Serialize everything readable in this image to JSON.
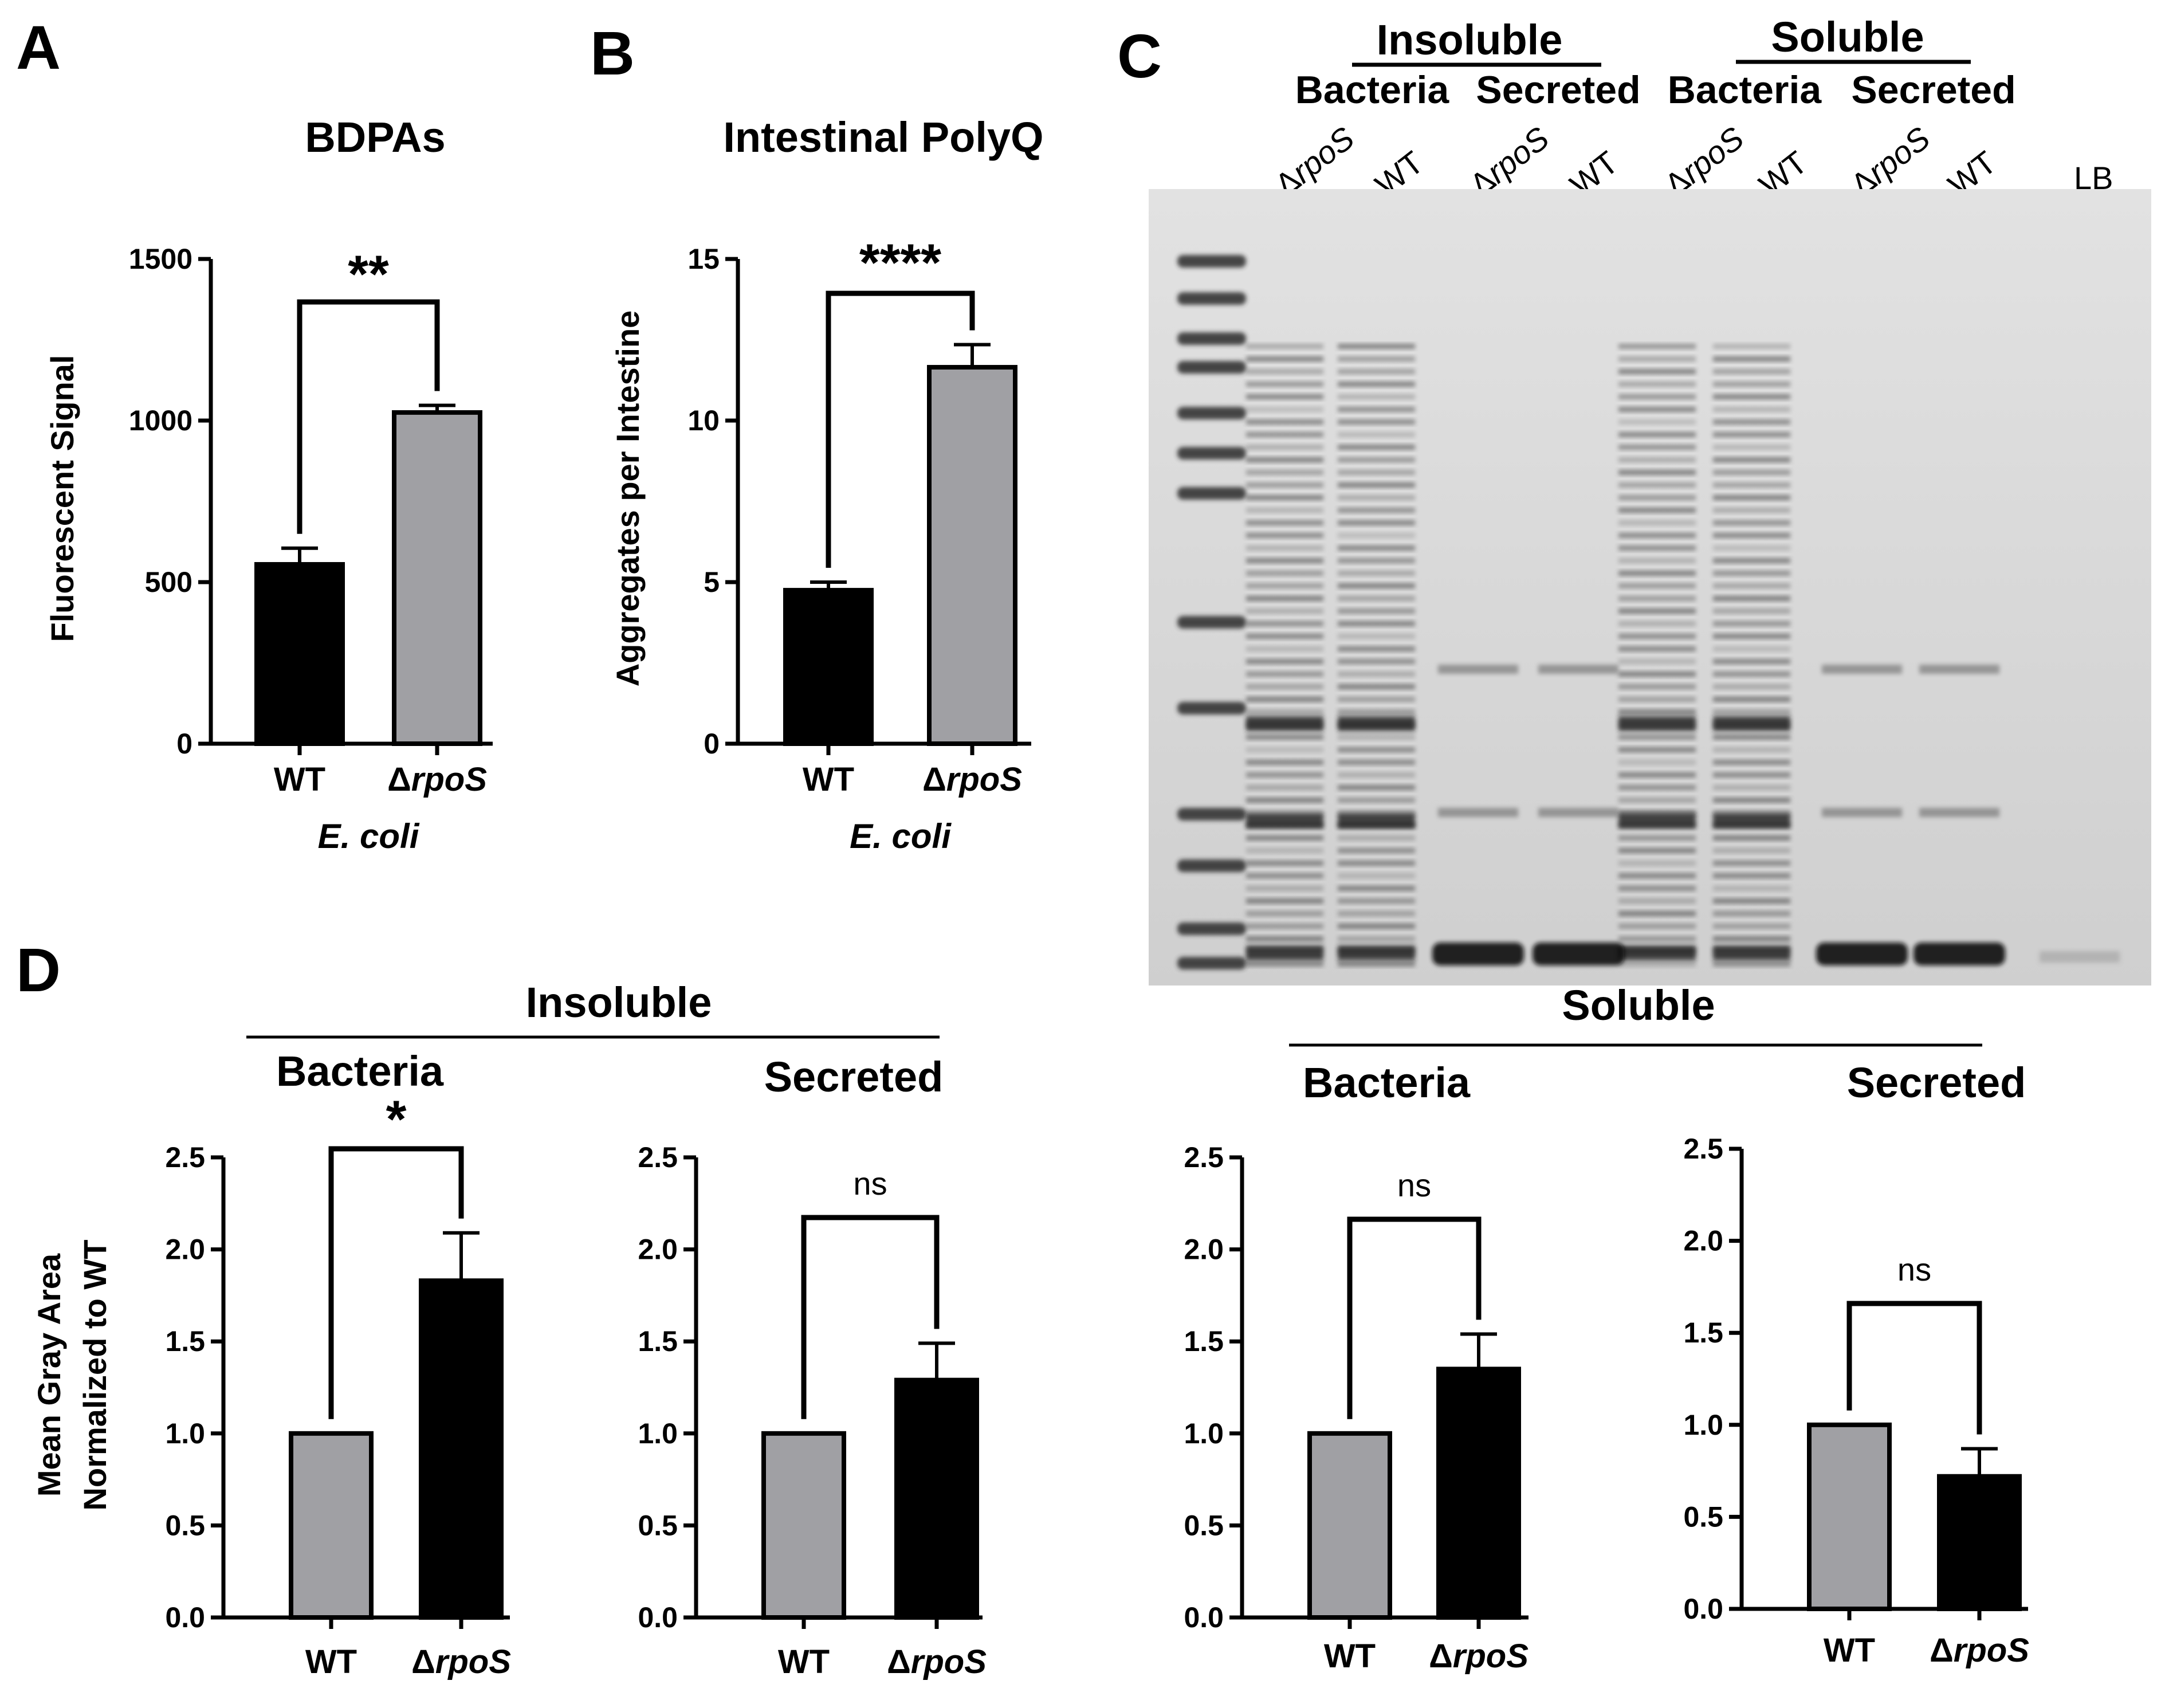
{
  "colors": {
    "black": "#000000",
    "gray": "#a0a0a4",
    "gel_background": "#dcdcdc",
    "gel_band": "#2a2a2a"
  },
  "panels": {
    "A": {
      "letter": "A"
    },
    "B": {
      "letter": "B"
    },
    "C": {
      "letter": "C"
    },
    "D": {
      "letter": "D"
    }
  },
  "gel": {
    "groups": [
      {
        "label": "Insoluble",
        "sublabels": [
          "Bacteria",
          "Secreted"
        ]
      },
      {
        "label": "Soluble",
        "sublabels": [
          "Bacteria",
          "Secreted"
        ]
      }
    ],
    "lanes": [
      {
        "delta": "Δ",
        "italic": "rpoS"
      },
      {
        "delta": "",
        "italic": "",
        "plain": "WT"
      },
      {
        "delta": "Δ",
        "italic": "rpoS"
      },
      {
        "delta": "",
        "italic": "",
        "plain": "WT"
      },
      {
        "delta": "Δ",
        "italic": "rpoS"
      },
      {
        "delta": "",
        "italic": "",
        "plain": "WT"
      },
      {
        "delta": "Δ",
        "italic": "rpoS"
      },
      {
        "delta": "",
        "italic": "",
        "plain": "WT"
      },
      {
        "delta": "",
        "italic": "",
        "plain": "LB"
      }
    ]
  },
  "panel_d_headers": {
    "insoluble": "Insoluble",
    "soluble": "Soluble",
    "ylabel_line1": "Mean Gray Area",
    "ylabel_line2": "Normalized to WT"
  },
  "chart_data": [
    {
      "id": "A",
      "type": "bar",
      "title": "BDPAs",
      "ylabel": "Fluorescent Signal",
      "xlabel": "E. coli",
      "categories": [
        {
          "prefix": "",
          "italic": "",
          "plain": "WT"
        },
        {
          "prefix": "Δ",
          "italic": "rpoS",
          "plain": ""
        }
      ],
      "values": [
        555,
        1025
      ],
      "errors": [
        50,
        22
      ],
      "bar_colors": [
        "#000000",
        "#a0a0a4"
      ],
      "ylim": [
        0,
        1500
      ],
      "yticks": [
        0,
        500,
        1000,
        1500
      ],
      "tick_labels": [
        "0",
        "500",
        "1000",
        "1500"
      ],
      "significance": "**"
    },
    {
      "id": "B",
      "type": "bar",
      "title": "Intestinal PolyQ",
      "ylabel": "Aggregates per Intestine",
      "xlabel": "E. coli",
      "categories": [
        {
          "prefix": "",
          "italic": "",
          "plain": "WT"
        },
        {
          "prefix": "Δ",
          "italic": "rpoS",
          "plain": ""
        }
      ],
      "values": [
        4.75,
        11.65
      ],
      "errors": [
        0.25,
        0.7
      ],
      "bar_colors": [
        "#000000",
        "#a0a0a4"
      ],
      "ylim": [
        0,
        15
      ],
      "yticks": [
        0,
        5,
        10,
        15
      ],
      "tick_labels": [
        "0",
        "5",
        "10",
        "15"
      ],
      "significance": "****"
    },
    {
      "id": "D1",
      "type": "bar",
      "title": "Bacteria",
      "categories": [
        {
          "prefix": "",
          "italic": "",
          "plain": "WT"
        },
        {
          "prefix": "Δ",
          "italic": "rpoS",
          "plain": ""
        }
      ],
      "values": [
        1.0,
        1.83
      ],
      "errors": [
        0,
        0.26
      ],
      "bar_colors": [
        "#a0a0a4",
        "#000000"
      ],
      "ylim": [
        0,
        2.5
      ],
      "yticks": [
        0,
        0.5,
        1.0,
        1.5,
        2.0,
        2.5
      ],
      "tick_labels": [
        "0.0",
        "0.5",
        "1.0",
        "1.5",
        "2.0",
        "2.5"
      ],
      "significance": "*"
    },
    {
      "id": "D2",
      "type": "bar",
      "title": "Secreted",
      "categories": [
        {
          "prefix": "",
          "italic": "",
          "plain": "WT"
        },
        {
          "prefix": "Δ",
          "italic": "rpoS",
          "plain": ""
        }
      ],
      "values": [
        1.0,
        1.29
      ],
      "errors": [
        0,
        0.2
      ],
      "bar_colors": [
        "#a0a0a4",
        "#000000"
      ],
      "ylim": [
        0,
        2.5
      ],
      "yticks": [
        0,
        0.5,
        1.0,
        1.5,
        2.0,
        2.5
      ],
      "tick_labels": [
        "0.0",
        "0.5",
        "1.0",
        "1.5",
        "2.0",
        "2.5"
      ],
      "significance": "ns"
    },
    {
      "id": "D3",
      "type": "bar",
      "title": "Bacteria",
      "categories": [
        {
          "prefix": "",
          "italic": "",
          "plain": "WT"
        },
        {
          "prefix": "Δ",
          "italic": "rpoS",
          "plain": ""
        }
      ],
      "values": [
        1.0,
        1.35
      ],
      "errors": [
        0,
        0.19
      ],
      "bar_colors": [
        "#a0a0a4",
        "#000000"
      ],
      "ylim": [
        0,
        2.5
      ],
      "yticks": [
        0,
        0.5,
        1.0,
        1.5,
        2.0,
        2.5
      ],
      "tick_labels": [
        "0.0",
        "0.5",
        "1.0",
        "1.5",
        "2.0",
        "2.5"
      ],
      "significance": "ns"
    },
    {
      "id": "D4",
      "type": "bar",
      "title": "Secreted",
      "categories": [
        {
          "prefix": "",
          "italic": "",
          "plain": "WT"
        },
        {
          "prefix": "Δ",
          "italic": "rpoS",
          "plain": ""
        }
      ],
      "values": [
        1.0,
        0.72
      ],
      "errors": [
        0,
        0.15
      ],
      "bar_colors": [
        "#a0a0a4",
        "#000000"
      ],
      "ylim": [
        0,
        2.5
      ],
      "yticks": [
        0,
        0.5,
        1.0,
        1.5,
        2.0,
        2.5
      ],
      "tick_labels": [
        "0.0",
        "0.5",
        "1.0",
        "1.5",
        "2.0",
        "2.5"
      ],
      "significance": "ns"
    }
  ]
}
